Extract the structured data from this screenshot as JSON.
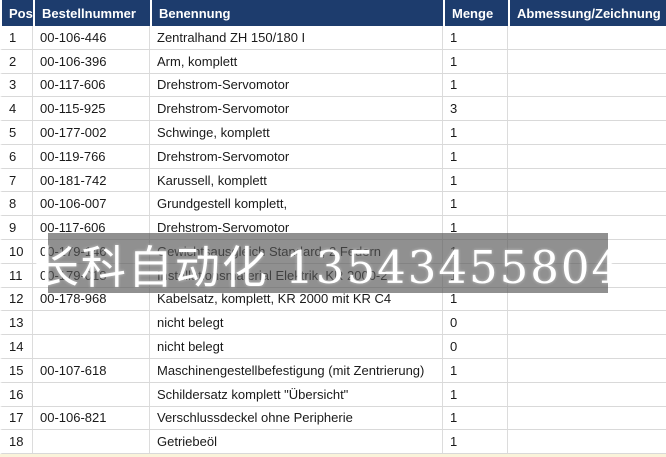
{
  "colors": {
    "header_bg": "#1d3c6d",
    "header_text": "#ffffff",
    "grid": "#d9d9d9",
    "grid_vertical": "#dcdcdc",
    "body_text": "#1a1a1a",
    "watermark_bg": "rgba(84,84,84,0.65)",
    "watermark_text": "#ffffff"
  },
  "watermark": {
    "text": "长科自动化 13543455804"
  },
  "table": {
    "columns": [
      {
        "label": "Pos"
      },
      {
        "label": "Bestellnummer"
      },
      {
        "label": "Benennung"
      },
      {
        "label": "Menge"
      },
      {
        "label": "Abmessung/Zeichnung"
      }
    ],
    "rows": [
      {
        "pos": "1",
        "bestellnummer": "00-106-446",
        "benennung": "Zentralhand ZH 150/180 I",
        "menge": "1",
        "abmessung": ""
      },
      {
        "pos": "2",
        "bestellnummer": "00-106-396",
        "benennung": "Arm, komplett",
        "menge": "1",
        "abmessung": ""
      },
      {
        "pos": "3",
        "bestellnummer": "00-117-606",
        "benennung": "Drehstrom-Servomotor",
        "menge": "1",
        "abmessung": ""
      },
      {
        "pos": "4",
        "bestellnummer": "00-115-925",
        "benennung": "Drehstrom-Servomotor",
        "menge": "3",
        "abmessung": ""
      },
      {
        "pos": "5",
        "bestellnummer": "00-177-002",
        "benennung": "Schwinge, komplett",
        "menge": "1",
        "abmessung": ""
      },
      {
        "pos": "6",
        "bestellnummer": "00-119-766",
        "benennung": "Drehstrom-Servomotor",
        "menge": "1",
        "abmessung": ""
      },
      {
        "pos": "7",
        "bestellnummer": "00-181-742",
        "benennung": "Karussell, komplett",
        "menge": "1",
        "abmessung": ""
      },
      {
        "pos": "8",
        "bestellnummer": "00-106-007",
        "benennung": "Grundgestell komplett,",
        "menge": "1",
        "abmessung": ""
      },
      {
        "pos": "9",
        "bestellnummer": "00-117-606",
        "benennung": "Drehstrom-Servomotor",
        "menge": "1",
        "abmessung": ""
      },
      {
        "pos": "10",
        "bestellnummer": "00-179-146",
        "benennung": "Gewichtsausgleich Standard, 2 Federn",
        "menge": "1",
        "abmessung": ""
      },
      {
        "pos": "11",
        "bestellnummer": "00-179-018",
        "benennung": "Installationsmaterial Elektrik, KR 2000-2",
        "menge": "1",
        "abmessung": ""
      },
      {
        "pos": "12",
        "bestellnummer": "00-178-968",
        "benennung": "Kabelsatz, komplett, KR 2000 mit KR C4",
        "menge": "1",
        "abmessung": ""
      },
      {
        "pos": "13",
        "bestellnummer": "",
        "benennung": "nicht belegt",
        "menge": "0",
        "abmessung": ""
      },
      {
        "pos": "14",
        "bestellnummer": "",
        "benennung": "nicht belegt",
        "menge": "0",
        "abmessung": ""
      },
      {
        "pos": "15",
        "bestellnummer": "00-107-618",
        "benennung": "Maschinengestellbefestigung (mit Zentrierung)",
        "menge": "1",
        "abmessung": ""
      },
      {
        "pos": "16",
        "bestellnummer": "",
        "benennung": "Schildersatz komplett \"Übersicht\"",
        "menge": "1",
        "abmessung": ""
      },
      {
        "pos": "17",
        "bestellnummer": "00-106-821",
        "benennung": "Verschlussdeckel ohne Peripherie",
        "menge": "1",
        "abmessung": ""
      },
      {
        "pos": "18",
        "bestellnummer": "",
        "benennung": "Getriebeöl",
        "menge": "1",
        "abmessung": ""
      }
    ]
  }
}
